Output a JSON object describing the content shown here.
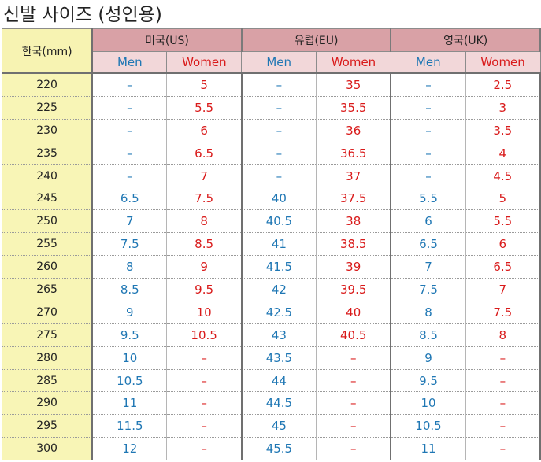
{
  "title": "신발 사이즈 (성인용)",
  "korea_header": "한국(mm)",
  "regions": [
    {
      "label": "미국(US)"
    },
    {
      "label": "유럽(EU)"
    },
    {
      "label": "영국(UK)"
    }
  ],
  "sub_headers": {
    "men": "Men",
    "women": "Women"
  },
  "colors": {
    "region_header_bg": "#d9a1a6",
    "sub_header_bg": "#f2d7d9",
    "korea_col_bg": "#f8f5b6",
    "men_text": "#1f77b4",
    "women_text": "#d91a1a"
  },
  "rows": [
    {
      "kr": "220",
      "us_men": "–",
      "us_women": "5",
      "eu_men": "–",
      "eu_women": "35",
      "uk_men": "–",
      "uk_women": "2.5"
    },
    {
      "kr": "225",
      "us_men": "–",
      "us_women": "5.5",
      "eu_men": "–",
      "eu_women": "35.5",
      "uk_men": "–",
      "uk_women": "3"
    },
    {
      "kr": "230",
      "us_men": "–",
      "us_women": "6",
      "eu_men": "–",
      "eu_women": "36",
      "uk_men": "–",
      "uk_women": "3.5"
    },
    {
      "kr": "235",
      "us_men": "–",
      "us_women": "6.5",
      "eu_men": "–",
      "eu_women": "36.5",
      "uk_men": "–",
      "uk_women": "4"
    },
    {
      "kr": "240",
      "us_men": "–",
      "us_women": "7",
      "eu_men": "–",
      "eu_women": "37",
      "uk_men": "–",
      "uk_women": "4.5"
    },
    {
      "kr": "245",
      "us_men": "6.5",
      "us_women": "7.5",
      "eu_men": "40",
      "eu_women": "37.5",
      "uk_men": "5.5",
      "uk_women": "5"
    },
    {
      "kr": "250",
      "us_men": "7",
      "us_women": "8",
      "eu_men": "40.5",
      "eu_women": "38",
      "uk_men": "6",
      "uk_women": "5.5"
    },
    {
      "kr": "255",
      "us_men": "7.5",
      "us_women": "8.5",
      "eu_men": "41",
      "eu_women": "38.5",
      "uk_men": "6.5",
      "uk_women": "6"
    },
    {
      "kr": "260",
      "us_men": "8",
      "us_women": "9",
      "eu_men": "41.5",
      "eu_women": "39",
      "uk_men": "7",
      "uk_women": "6.5"
    },
    {
      "kr": "265",
      "us_men": "8.5",
      "us_women": "9.5",
      "eu_men": "42",
      "eu_women": "39.5",
      "uk_men": "7.5",
      "uk_women": "7"
    },
    {
      "kr": "270",
      "us_men": "9",
      "us_women": "10",
      "eu_men": "42.5",
      "eu_women": "40",
      "uk_men": "8",
      "uk_women": "7.5"
    },
    {
      "kr": "275",
      "us_men": "9.5",
      "us_women": "10.5",
      "eu_men": "43",
      "eu_women": "40.5",
      "uk_men": "8.5",
      "uk_women": "8"
    },
    {
      "kr": "280",
      "us_men": "10",
      "us_women": "–",
      "eu_men": "43.5",
      "eu_women": "–",
      "uk_men": "9",
      "uk_women": "–"
    },
    {
      "kr": "285",
      "us_men": "10.5",
      "us_women": "–",
      "eu_men": "44",
      "eu_women": "–",
      "uk_men": "9.5",
      "uk_women": "–"
    },
    {
      "kr": "290",
      "us_men": "11",
      "us_women": "–",
      "eu_men": "44.5",
      "eu_women": "–",
      "uk_men": "10",
      "uk_women": "–"
    },
    {
      "kr": "295",
      "us_men": "11.5",
      "us_women": "–",
      "eu_men": "45",
      "eu_women": "–",
      "uk_men": "10.5",
      "uk_women": "–"
    },
    {
      "kr": "300",
      "us_men": "12",
      "us_women": "–",
      "eu_men": "45.5",
      "eu_women": "–",
      "uk_men": "11",
      "uk_women": "–"
    }
  ]
}
